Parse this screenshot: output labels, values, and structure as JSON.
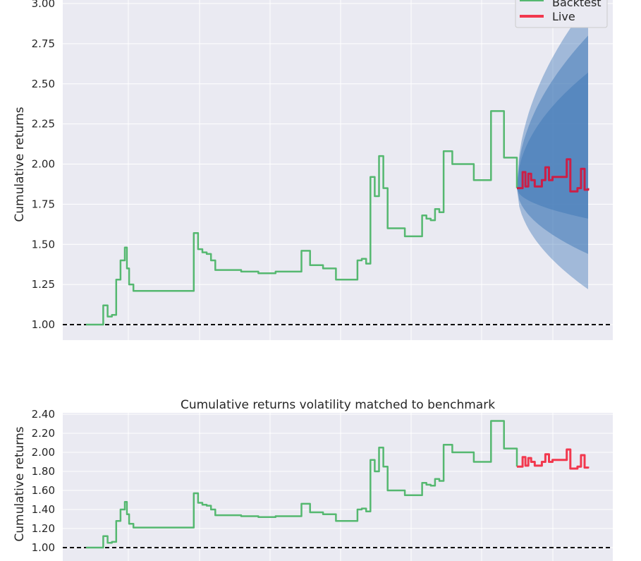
{
  "colors": {
    "panel_bg": "#eaeaf2",
    "grid": "#ffffff",
    "backtest": "#55b870",
    "live_top": "#cc1e46",
    "live_bottom": "#f2384e",
    "cone": "#4a7fba",
    "baseline": "#000000"
  },
  "chart_data": [
    {
      "type": "line",
      "title": "",
      "xlabel": "",
      "ylabel": "Cumulative returns",
      "ylim": [
        0.9,
        3.0
      ],
      "y_ticks": [
        "1.00",
        "1.25",
        "1.50",
        "1.75",
        "2.00",
        "2.25",
        "2.50",
        "2.75",
        "3.00"
      ],
      "grid": true,
      "legend": {
        "placement": "top-right",
        "entries": [
          "Backtest",
          "Live"
        ]
      },
      "baseline": 1.0,
      "series": [
        {
          "name": "Backtest",
          "x": [
            0.0,
            0.03,
            0.04,
            0.05,
            0.06,
            0.07,
            0.08,
            0.09,
            0.095,
            0.1,
            0.11,
            0.12,
            0.125,
            0.13,
            0.14,
            0.18,
            0.22,
            0.25,
            0.26,
            0.27,
            0.28,
            0.29,
            0.3,
            0.32,
            0.36,
            0.4,
            0.44,
            0.48,
            0.5,
            0.52,
            0.55,
            0.58,
            0.62,
            0.63,
            0.64,
            0.65,
            0.66,
            0.67,
            0.68,
            0.69,
            0.7,
            0.72,
            0.74,
            0.76,
            0.78,
            0.79,
            0.8,
            0.81,
            0.82,
            0.83,
            0.85,
            0.9,
            0.94,
            0.97,
            1.0
          ],
          "y": [
            1.0,
            1.0,
            1.12,
            1.05,
            1.06,
            1.28,
            1.4,
            1.48,
            1.35,
            1.25,
            1.21,
            1.21,
            1.21,
            1.21,
            1.21,
            1.21,
            1.21,
            1.57,
            1.47,
            1.45,
            1.44,
            1.4,
            1.34,
            1.34,
            1.33,
            1.32,
            1.33,
            1.33,
            1.46,
            1.37,
            1.35,
            1.28,
            1.28,
            1.4,
            1.41,
            1.38,
            1.92,
            1.8,
            2.05,
            1.85,
            1.6,
            1.6,
            1.55,
            1.55,
            1.68,
            1.66,
            1.65,
            1.72,
            1.7,
            2.08,
            2.0,
            1.9,
            2.33,
            2.04,
            1.85
          ]
        },
        {
          "name": "Live",
          "x": [
            0.0,
            0.05,
            0.08,
            0.12,
            0.16,
            0.2,
            0.25,
            0.3,
            0.35,
            0.4,
            0.45,
            0.5,
            0.55,
            0.6,
            0.65,
            0.7,
            0.75,
            0.8,
            0.85,
            0.9,
            0.95,
            1.0
          ],
          "y": [
            1.85,
            1.85,
            1.95,
            1.86,
            1.94,
            1.9,
            1.86,
            1.86,
            1.9,
            1.98,
            1.9,
            1.92,
            1.92,
            1.92,
            1.92,
            2.03,
            1.83,
            1.83,
            1.85,
            1.97,
            1.84,
            1.85
          ]
        }
      ]
    },
    {
      "type": "line",
      "title": "Cumulative returns volatility matched to benchmark",
      "xlabel": "",
      "ylabel": "Cumulative returns",
      "ylim": [
        1.0,
        2.4
      ],
      "y_ticks": [
        "1.00",
        "1.20",
        "1.40",
        "1.60",
        "1.80",
        "2.00",
        "2.20",
        "2.40"
      ],
      "grid": true,
      "baseline": 1.0,
      "series": [
        {
          "name": "Backtest",
          "same_as_chart": 0
        },
        {
          "name": "Live",
          "same_as_chart": 0
        }
      ]
    }
  ]
}
